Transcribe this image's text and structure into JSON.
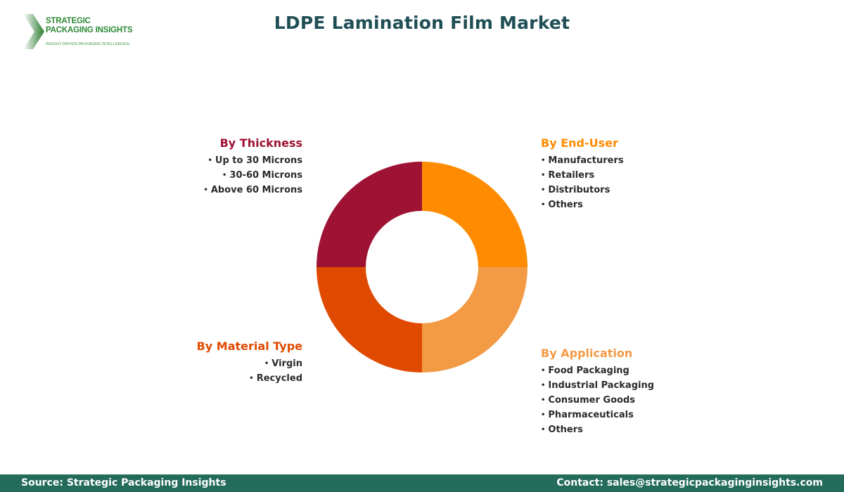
{
  "logo": {
    "name_line1": "STRATEGIC",
    "name_line2": "PACKAGING INSIGHTS",
    "tagline": "INSIGHT-DRIVEN PACKAGING INTELLIGENCE",
    "icon": "chevron-arrow-icon",
    "color": "#2f8a36"
  },
  "title": "LDPE Lamination Film Market",
  "segments": {
    "thickness": {
      "heading": "By Thickness",
      "color": "#9E1233",
      "items": [
        "Up to 30 Microns",
        "30-60 Microns",
        "Above 60 Microns"
      ]
    },
    "end_user": {
      "heading": "By End-User",
      "color": "#FF8C00",
      "items": [
        "Manufacturers",
        "Retailers",
        "Distributors",
        "Others"
      ]
    },
    "material_type": {
      "heading": "By Material Type",
      "color": "#E04A00",
      "items": [
        "Virgin",
        "Recycled"
      ]
    },
    "application": {
      "heading": "By Application",
      "color": "#F39A45",
      "items": [
        "Food Packaging",
        "Industrial Packaging",
        "Consumer Goods",
        "Pharmaceuticals",
        "Others"
      ]
    }
  },
  "bullet": "•",
  "footer": {
    "source": "Source: Strategic Packaging Insights",
    "contact": "Contact: sales@strategicpackaginginsights.com",
    "background": "#236b5a"
  },
  "chart_data": {
    "type": "pie",
    "title": "LDPE Lamination Film Market",
    "donut": true,
    "categories": [
      "By End-User",
      "By Application",
      "By Material Type",
      "By Thickness"
    ],
    "values": [
      25,
      25,
      25,
      25
    ],
    "colors": [
      "#FF8C00",
      "#F39A45",
      "#E04A00",
      "#9E1233"
    ],
    "legend_position": "around",
    "annotations": {
      "By Thickness": [
        "Up to 30 Microns",
        "30-60 Microns",
        "Above 60 Microns"
      ],
      "By End-User": [
        "Manufacturers",
        "Retailers",
        "Distributors",
        "Others"
      ],
      "By Material Type": [
        "Virgin",
        "Recycled"
      ],
      "By Application": [
        "Food Packaging",
        "Industrial Packaging",
        "Consumer Goods",
        "Pharmaceuticals",
        "Others"
      ]
    }
  }
}
